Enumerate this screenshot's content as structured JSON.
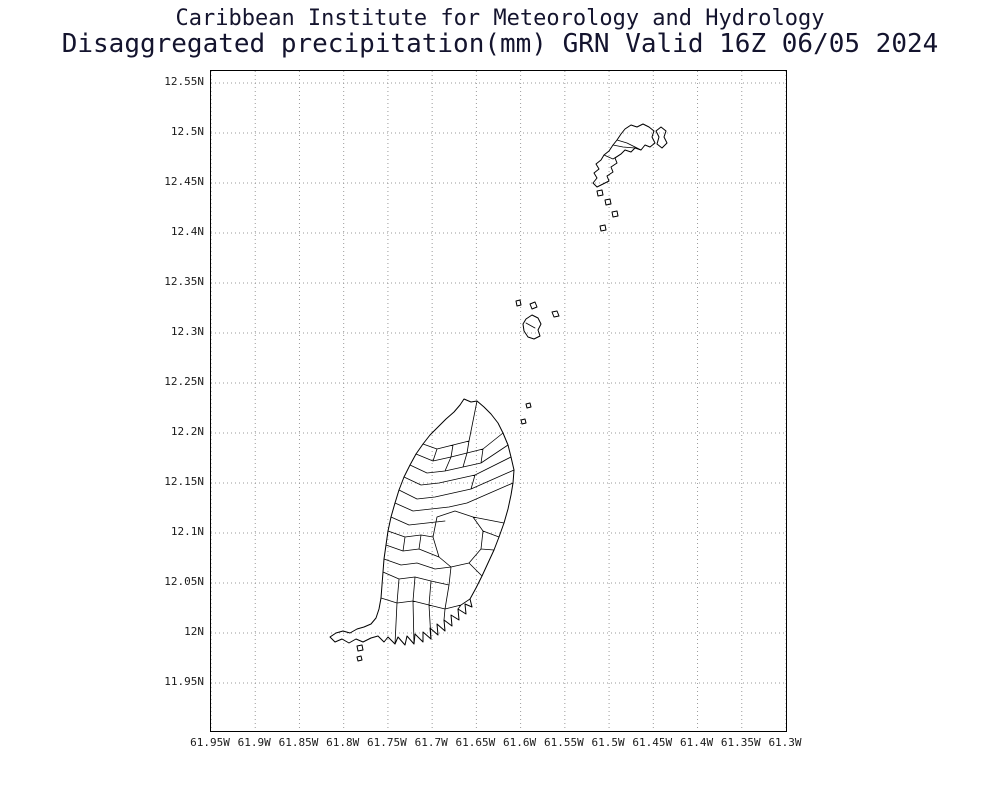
{
  "header": {
    "line1": "Caribbean Institute for Meteorology and Hydrology",
    "line2": "Disaggregated precipitation(mm) GRN Valid 16Z 06/05 2024"
  },
  "map": {
    "region_code": "GRN",
    "valid_time": "16Z 06/05 2024",
    "units": "mm",
    "x_ticks": [
      "61.95W",
      "61.9W",
      "61.85W",
      "61.8W",
      "61.75W",
      "61.7W",
      "61.65W",
      "61.6W",
      "61.55W",
      "61.5W",
      "61.45W",
      "61.4W",
      "61.35W",
      "61.3W"
    ],
    "y_ticks": [
      "12.55N",
      "12.5N",
      "12.45N",
      "12.4N",
      "12.35N",
      "12.3N",
      "12.25N",
      "12.2N",
      "12.15N",
      "12.1N",
      "12.05N",
      "12N",
      "11.95N"
    ],
    "lon_range": [
      "61.95W",
      "61.3W"
    ],
    "lat_range": [
      "11.95N",
      "12.55N"
    ],
    "grid": "dotted"
  },
  "style": {
    "background_color": "#ffffff",
    "title_color": "#14142e",
    "frame_color": "#000000",
    "grid_color": "#9a9a9a",
    "coastline_color": "#000000",
    "label_color": "#1a1a1a"
  }
}
